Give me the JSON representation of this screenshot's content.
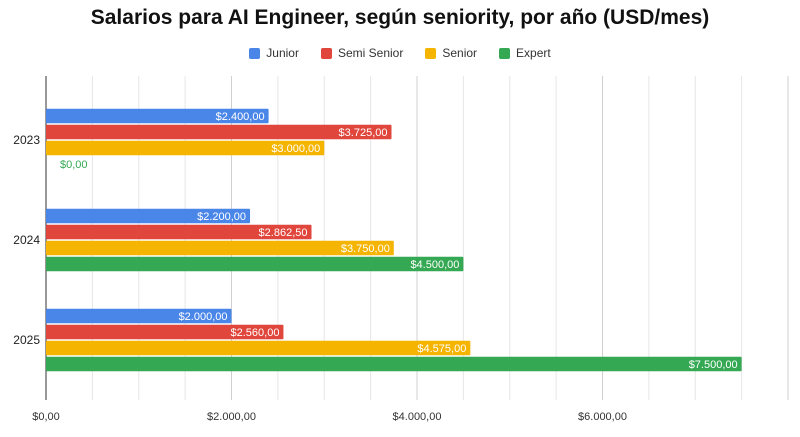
{
  "chart_data": {
    "type": "bar",
    "orientation": "horizontal",
    "title": "Salarios para AI Engineer, según seniority, por año (USD/mes)",
    "categories": [
      "2023",
      "2024",
      "2025"
    ],
    "series": [
      {
        "name": "Junior",
        "color": "#4a86e8",
        "values": [
          2400,
          2200,
          2000
        ],
        "labels": [
          "$2.400,00",
          "$2.200,00",
          "$2.000,00"
        ]
      },
      {
        "name": "Semi Senior",
        "color": "#e0463c",
        "values": [
          3725,
          2862.5,
          2560
        ],
        "labels": [
          "$3.725,00",
          "$2.862,50",
          "$2.560,00"
        ]
      },
      {
        "name": "Senior",
        "color": "#f4b400",
        "values": [
          3000,
          3750,
          4575
        ],
        "labels": [
          "$3.000,00",
          "$3.750,00",
          "$4.575,00"
        ]
      },
      {
        "name": "Expert",
        "color": "#34a853",
        "values": [
          0,
          4500,
          7500
        ],
        "labels": [
          "$0,00",
          "$4.500,00",
          "$7.500,00"
        ]
      }
    ],
    "xlim": [
      0,
      8000
    ],
    "xticks": [
      0,
      2000,
      4000,
      6000
    ],
    "xtick_labels": [
      "$0,00",
      "$2.000,00",
      "$4.000,00",
      "$6.000,00"
    ],
    "grid": true,
    "legend": "top-center"
  }
}
